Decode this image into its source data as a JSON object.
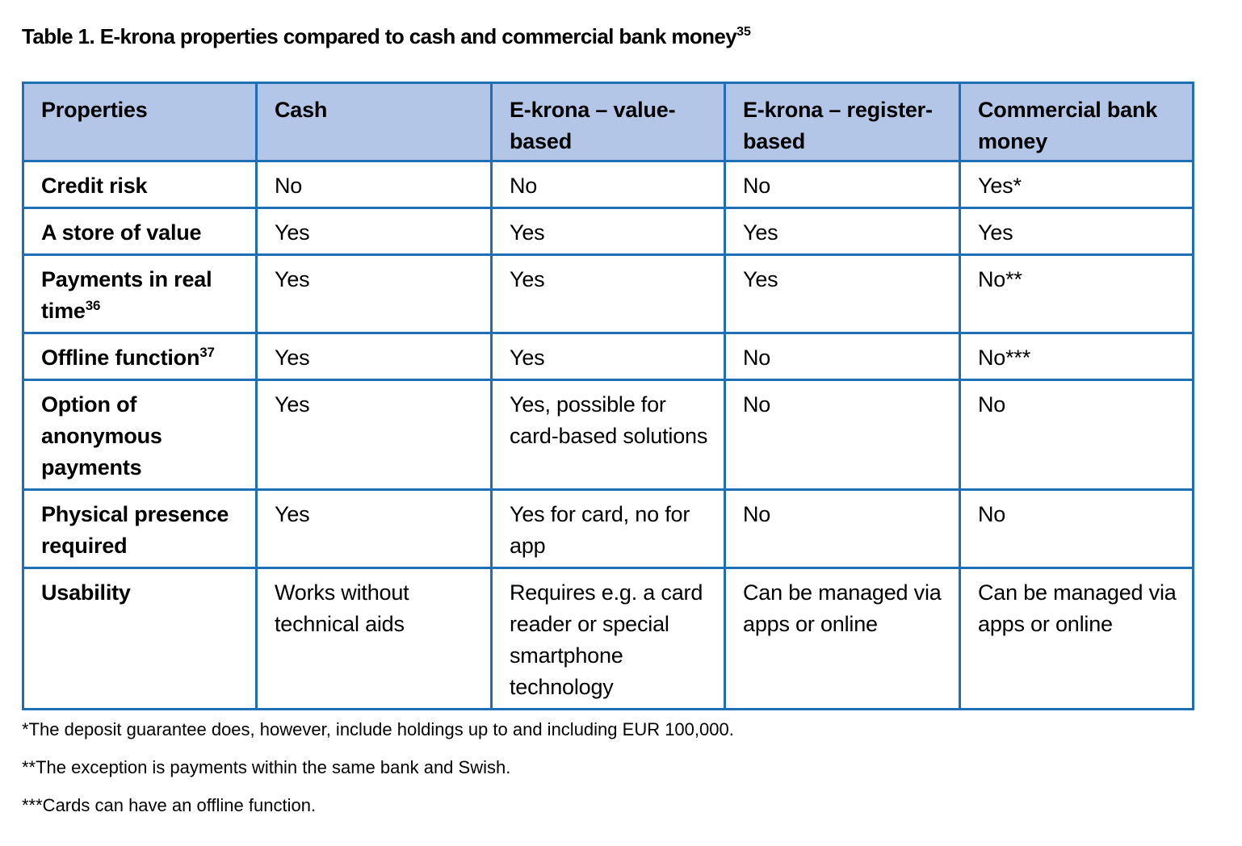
{
  "title": {
    "text": "Table 1. E-krona properties compared to cash and commercial bank money",
    "footnote_ref": "35"
  },
  "table": {
    "headers": [
      "Properties",
      "Cash",
      "E-krona – value-based",
      "E-krona – register-based",
      "Commercial bank money"
    ],
    "rows": [
      {
        "property": "Credit risk",
        "ref": "",
        "cash": "No",
        "value_based": "No",
        "register_based": "No",
        "commercial": "Yes*"
      },
      {
        "property": "A store of value",
        "ref": "",
        "cash": "Yes",
        "value_based": "Yes",
        "register_based": "Yes",
        "commercial": "Yes"
      },
      {
        "property": "Payments in real time",
        "ref": "36",
        "cash": "Yes",
        "value_based": "Yes",
        "register_based": "Yes",
        "commercial": "No**"
      },
      {
        "property": "Offline function",
        "ref": "37",
        "cash": "Yes",
        "value_based": "Yes",
        "register_based": "No",
        "commercial": "No***"
      },
      {
        "property": "Option of anonymous payments",
        "ref": "",
        "cash": "Yes",
        "value_based": "Yes, possible for card-based solutions",
        "register_based": "No",
        "commercial": "No"
      },
      {
        "property": "Physical presence required",
        "ref": "",
        "cash": "Yes",
        "value_based": "Yes for card, no for app",
        "register_based": "No",
        "commercial": "No"
      },
      {
        "property": "Usability",
        "ref": "",
        "cash": "Works without technical aids",
        "value_based": "Requires e.g. a card reader or special smartphone technology",
        "register_based": "Can be managed via apps or online",
        "commercial": "Can be managed via apps or online"
      }
    ]
  },
  "footnotes": [
    "*The deposit guarantee does, however, include holdings up to and including EUR 100,000.",
    "**The exception is payments within the same bank and Swish.",
    "***Cards can have an offline function."
  ]
}
